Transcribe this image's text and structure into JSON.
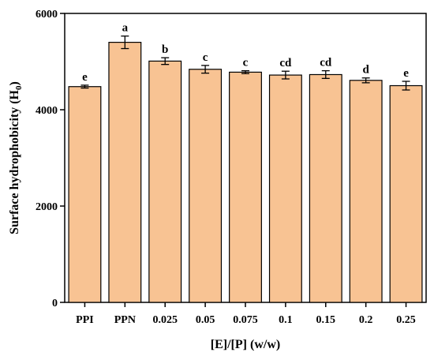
{
  "chart_data": {
    "type": "bar",
    "categories": [
      "PPI",
      "PPN",
      "0.025",
      "0.05",
      "0.075",
      "0.1",
      "0.15",
      "0.2",
      "0.25"
    ],
    "values": [
      4480,
      5400,
      5010,
      4840,
      4780,
      4720,
      4730,
      4610,
      4500
    ],
    "errors": [
      30,
      130,
      70,
      80,
      30,
      80,
      80,
      50,
      90
    ],
    "significance_letters": [
      "e",
      "a",
      "b",
      "c",
      "c",
      "cd",
      "cd",
      "d",
      "e"
    ],
    "xlabel": "[E]/[P] (w/w)",
    "ylabel_main": "Surface hydrophobicity (H",
    "ylabel_sub": "0",
    "ylabel_close": ")",
    "ylim": [
      0,
      6000
    ],
    "yticks": [
      0,
      2000,
      4000,
      6000
    ],
    "bar_color": "#F8C393",
    "grid": false,
    "legend": "none"
  }
}
